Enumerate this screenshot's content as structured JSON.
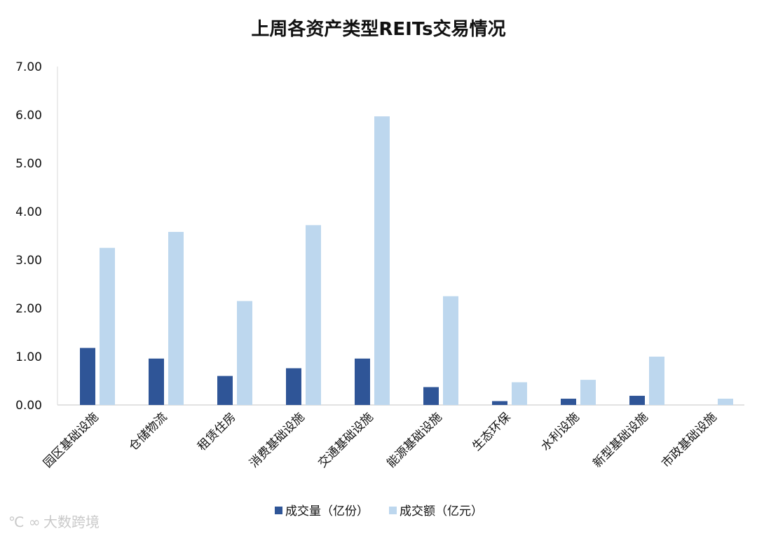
{
  "chart_data": {
    "type": "bar",
    "title": "上周各资产类型REITs交易情况",
    "categories": [
      "园区基础设施",
      "仓储物流",
      "租赁住房",
      "消费基础设施",
      "交通基础设施",
      "能源基础设施",
      "生态环保",
      "水利设施",
      "新型基础设施",
      "市政基础设施"
    ],
    "series": [
      {
        "name": "成交量（亿份）",
        "color": "#2F5597",
        "values": [
          1.18,
          0.96,
          0.6,
          0.76,
          0.96,
          0.37,
          0.08,
          0.13,
          0.19,
          0.0
        ]
      },
      {
        "name": "成交额（亿元）",
        "color": "#BDD7EE",
        "values": [
          3.25,
          3.58,
          2.15,
          3.72,
          5.97,
          2.25,
          0.47,
          0.52,
          1.0,
          0.13
        ]
      }
    ],
    "ylim": [
      0,
      7
    ],
    "yticks": [
      "0.00",
      "1.00",
      "2.00",
      "3.00",
      "4.00",
      "5.00",
      "6.00",
      "7.00"
    ],
    "legend_position": "bottom",
    "grid": false
  },
  "watermark": "大数跨境"
}
